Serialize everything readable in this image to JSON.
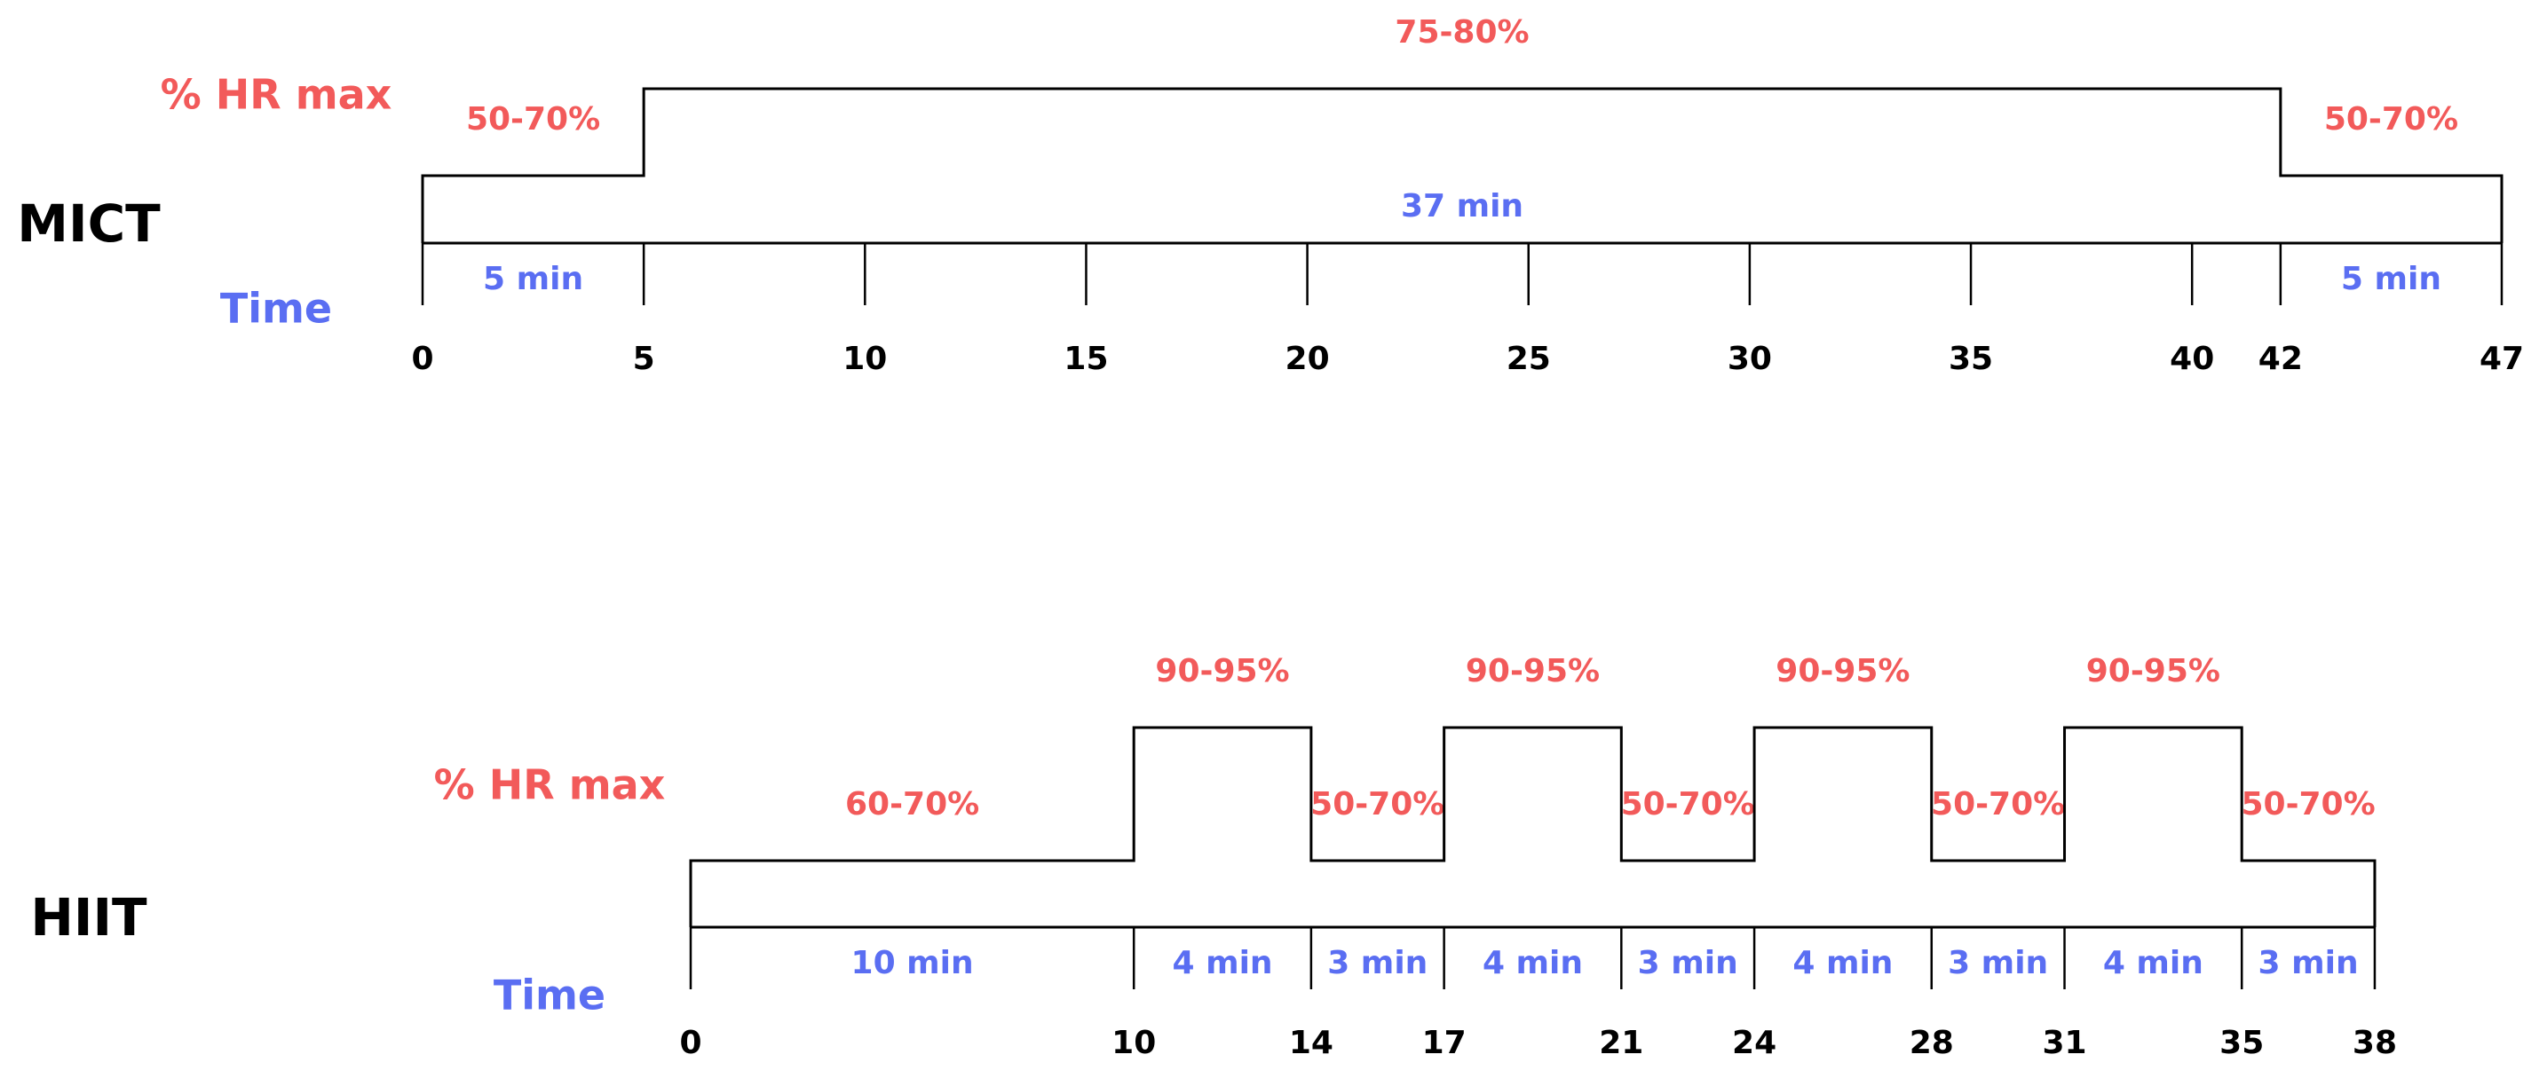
{
  "protocols": [
    {
      "name": "MICT",
      "hr_label": "% HR max",
      "time_label": "Time",
      "ticks": [
        0,
        5,
        10,
        15,
        20,
        25,
        30,
        35,
        40,
        42,
        47
      ],
      "segments": [
        {
          "intensity": "50-70%",
          "minutes": 5,
          "duration": "5 min"
        },
        {
          "intensity": "75-80%",
          "minutes": 37,
          "duration": "37 min"
        },
        {
          "intensity": "50-70%",
          "minutes": 5,
          "duration": "5 min"
        }
      ]
    },
    {
      "name": "HIIT",
      "hr_label": "% HR max",
      "time_label": "Time",
      "ticks": [
        0,
        10,
        14,
        17,
        21,
        24,
        28,
        31,
        35,
        38
      ],
      "segments": [
        {
          "intensity": "60-70%",
          "minutes": 10,
          "duration": "10 min"
        },
        {
          "intensity": "90-95%",
          "minutes": 4,
          "duration": "4 min"
        },
        {
          "intensity": "50-70%",
          "minutes": 3,
          "duration": "3 min"
        },
        {
          "intensity": "90-95%",
          "minutes": 4,
          "duration": "4 min"
        },
        {
          "intensity": "50-70%",
          "minutes": 3,
          "duration": "3 min"
        },
        {
          "intensity": "90-95%",
          "minutes": 4,
          "duration": "4 min"
        },
        {
          "intensity": "50-70%",
          "minutes": 3,
          "duration": "3 min"
        },
        {
          "intensity": "90-95%",
          "minutes": 4,
          "duration": "4 min"
        },
        {
          "intensity": "50-70%",
          "minutes": 3,
          "duration": "3 min"
        }
      ]
    }
  ]
}
